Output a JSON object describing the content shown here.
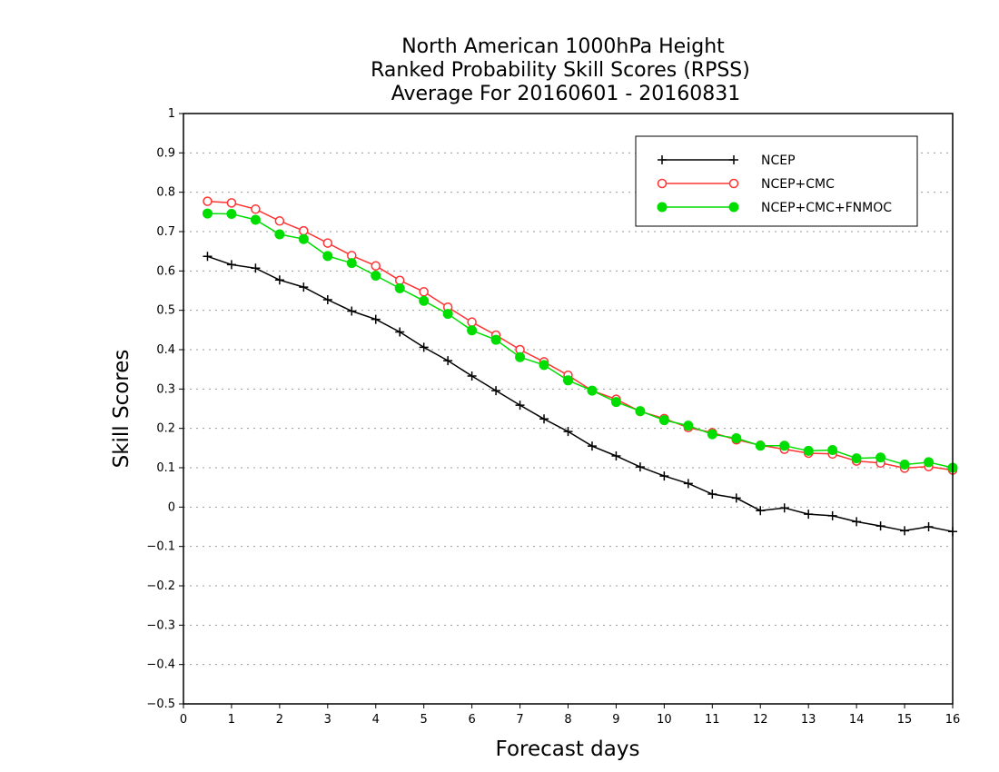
{
  "chart_data": {
    "type": "line",
    "title_lines": [
      "North American 1000hPa Height",
      "Ranked Probability Skill Scores (RPSS)",
      "Average For 20160601 - 20160831"
    ],
    "xlabel": "Forecast days",
    "ylabel": "Skill Scores",
    "xlim": [
      0,
      16
    ],
    "ylim": [
      -0.5,
      1
    ],
    "x_ticks": [
      0,
      1,
      2,
      3,
      4,
      5,
      6,
      7,
      8,
      9,
      10,
      11,
      12,
      13,
      14,
      15,
      16
    ],
    "y_ticks": [
      -0.5,
      -0.4,
      -0.3,
      -0.2,
      -0.1,
      0,
      0.1,
      0.2,
      0.3,
      0.4,
      0.5,
      0.6,
      0.7,
      0.8,
      0.9,
      1
    ],
    "y_tick_labels": [
      "−0.5",
      "−0.4",
      "−0.3",
      "−0.2",
      "−0.1",
      "0",
      "0.1",
      "0.2",
      "0.3",
      "0.4",
      "0.5",
      "0.6",
      "0.7",
      "0.8",
      "0.9",
      "1"
    ],
    "grid": "horizontal dotted",
    "legend_position": "top-right",
    "x": [
      0.5,
      1,
      1.5,
      2,
      2.5,
      3,
      3.5,
      4,
      4.5,
      5,
      5.5,
      6,
      6.5,
      7,
      7.5,
      8,
      8.5,
      9,
      9.5,
      10,
      10.5,
      11,
      11.5,
      12,
      12.5,
      13,
      13.5,
      14,
      14.5,
      15,
      15.5,
      16
    ],
    "series": [
      {
        "name": "NCEP",
        "color": "#000000",
        "marker": "plus",
        "values": [
          0.637,
          0.616,
          0.607,
          0.577,
          0.559,
          0.527,
          0.498,
          0.477,
          0.445,
          0.406,
          0.372,
          0.333,
          0.296,
          0.259,
          0.224,
          0.192,
          0.155,
          0.13,
          0.102,
          0.079,
          0.06,
          0.033,
          0.023,
          -0.009,
          -0.002,
          -0.018,
          -0.022,
          -0.037,
          -0.048,
          -0.06,
          -0.05,
          -0.062
        ]
      },
      {
        "name": "NCEP+CMC",
        "color": "#ff3333",
        "marker": "open-circle",
        "values": [
          0.777,
          0.773,
          0.757,
          0.727,
          0.702,
          0.671,
          0.639,
          0.613,
          0.576,
          0.547,
          0.508,
          0.47,
          0.437,
          0.4,
          0.369,
          0.335,
          0.296,
          0.274,
          0.243,
          0.225,
          0.202,
          0.189,
          0.171,
          0.157,
          0.147,
          0.137,
          0.135,
          0.117,
          0.112,
          0.099,
          0.103,
          0.094
        ]
      },
      {
        "name": "NCEP+CMC+FNMOC",
        "color": "#00dd00",
        "marker": "filled-circle",
        "values": [
          0.746,
          0.745,
          0.73,
          0.693,
          0.681,
          0.638,
          0.62,
          0.588,
          0.556,
          0.524,
          0.491,
          0.449,
          0.425,
          0.381,
          0.361,
          0.322,
          0.296,
          0.267,
          0.244,
          0.221,
          0.207,
          0.185,
          0.175,
          0.156,
          0.156,
          0.143,
          0.145,
          0.124,
          0.126,
          0.108,
          0.114,
          0.1
        ]
      }
    ]
  }
}
